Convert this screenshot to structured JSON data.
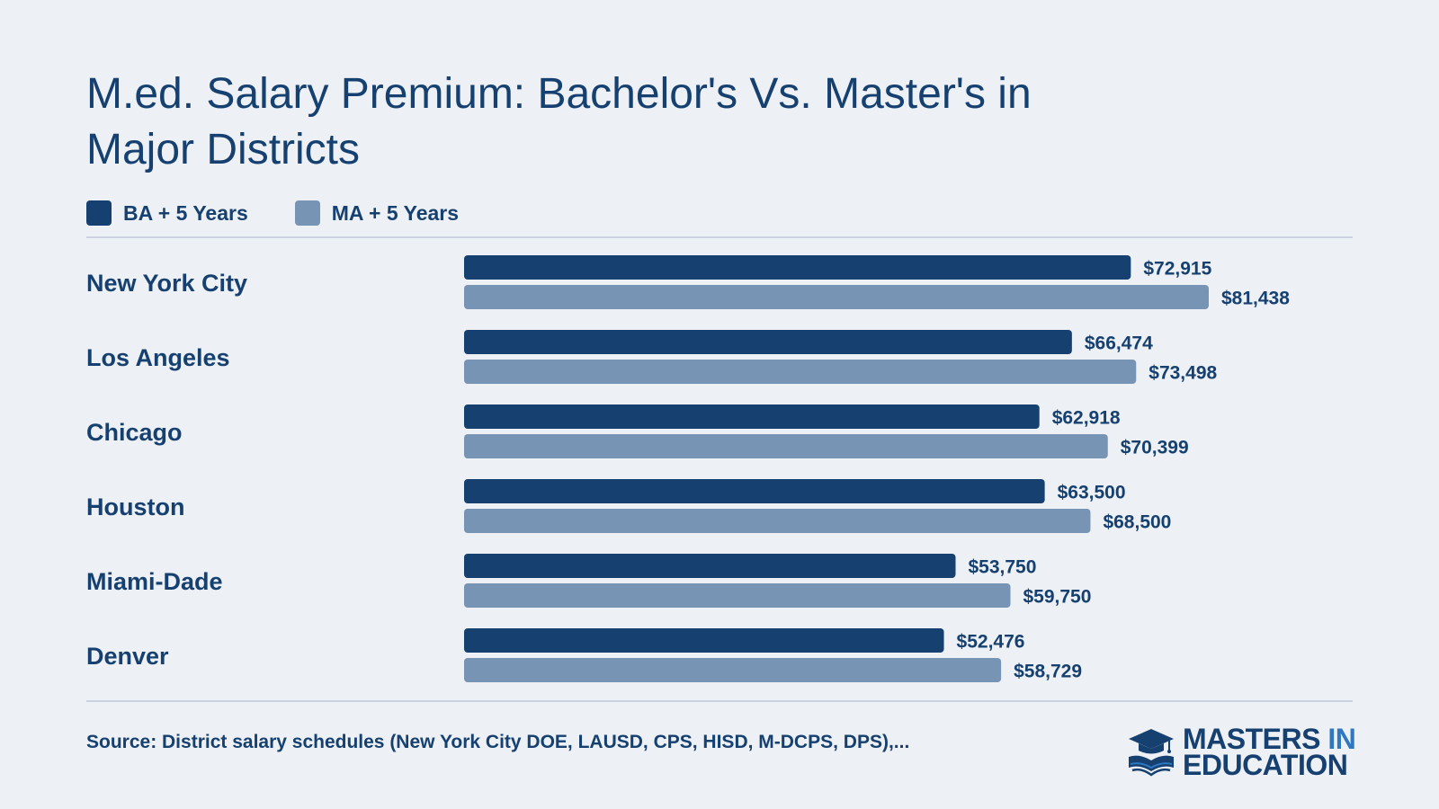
{
  "title": "M.ed. Salary Premium: Bachelor's Vs. Master's in Major Districts",
  "legend": [
    {
      "label": "BA + 5 Years",
      "color": "#15406f"
    },
    {
      "label": "MA + 5 Years",
      "color": "#7894b4"
    }
  ],
  "chart_data": {
    "type": "bar",
    "orientation": "horizontal",
    "title": "M.ed. Salary Premium: Bachelor's Vs. Master's in Major Districts",
    "categories": [
      "New York City",
      "Los Angeles",
      "Chicago",
      "Houston",
      "Miami-Dade",
      "Denver"
    ],
    "series": [
      {
        "name": "BA + 5 Years",
        "color": "#15406f",
        "values": [
          72915,
          66474,
          62918,
          63500,
          53750,
          52476
        ]
      },
      {
        "name": "MA + 5 Years",
        "color": "#7894b4",
        "values": [
          81438,
          73498,
          70399,
          68500,
          59750,
          58729
        ]
      }
    ],
    "value_labels": [
      [
        "$72,915",
        "$66,474",
        "$62,918",
        "$63,500",
        "$53,750",
        "$52,476"
      ],
      [
        "$81,438",
        "$73,498",
        "$70,399",
        "$68,500",
        "$59,750",
        "$58,729"
      ]
    ],
    "xlim": [
      0,
      81438
    ],
    "grid": false,
    "legend_position": "top-left"
  },
  "source": "Source: District salary schedules (New York City DOE, LAUSD, CPS, HISD, M-DCPS, DPS),...",
  "logo": {
    "line1_a": "MASTERS ",
    "line1_b": "IN",
    "line2": "EDUCATION",
    "icon": "graduation-cap-book-icon"
  }
}
